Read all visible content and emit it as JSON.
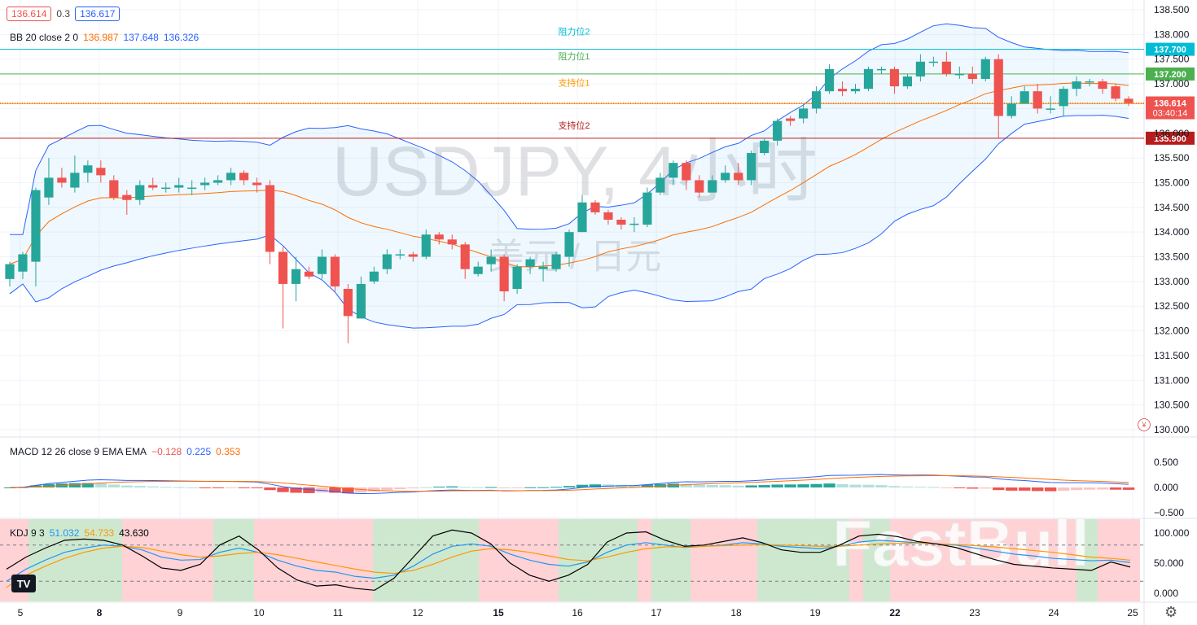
{
  "header": {
    "price_left": "136.614",
    "spread": "0.3",
    "price_right": "136.617"
  },
  "bb_legend": {
    "name": "BB 20 close 2 0",
    "basis": "136.987",
    "upper": "137.648",
    "lower": "136.326"
  },
  "macd_legend": {
    "name": "MACD 12 26 close 9 EMA EMA",
    "hist": "−0.128",
    "macd": "0.225",
    "signal": "0.353"
  },
  "kdj_legend": {
    "name": "KDJ 9 3",
    "k": "51.032",
    "d": "54.733",
    "j": "43.630"
  },
  "watermark": {
    "symbol": "USDJPY, 4小时",
    "desc": "美元 / 日元",
    "brand": "FastBull"
  },
  "colors": {
    "up": "#26a69a",
    "down": "#ef5350",
    "bb_band": "#2962ff",
    "bb_basis": "#ff6d00",
    "kdj_k": "#2196f3",
    "kdj_d": "#ff9800",
    "kdj_j": "#000000"
  },
  "chart_data": [
    {
      "type": "candlestick",
      "title": "USDJPY, 4小时",
      "subtitle": "美元 / 日元",
      "x_labels": [
        "5",
        "8",
        "9",
        "10",
        "11",
        "12",
        "15",
        "16",
        "17",
        "18",
        "19",
        "22",
        "23",
        "24",
        "25"
      ],
      "y_ticks": [
        "138.500",
        "138.000",
        "137.500",
        "137.000",
        "136.500",
        "136.000",
        "135.500",
        "135.000",
        "134.500",
        "134.000",
        "133.500",
        "133.000",
        "132.500",
        "132.000",
        "131.500",
        "131.000",
        "130.500",
        "130.000"
      ],
      "ylim": [
        129.95,
        138.65
      ],
      "candles": [
        [
          133.05,
          133.35,
          132.9,
          133.4
        ],
        [
          133.2,
          133.55,
          133.05,
          133.6
        ],
        [
          133.4,
          134.85,
          132.9,
          134.9
        ],
        [
          134.7,
          135.1,
          134.55,
          135.5
        ],
        [
          135.1,
          135.0,
          134.9,
          135.3
        ],
        [
          134.9,
          135.2,
          134.8,
          135.55
        ],
        [
          135.2,
          135.35,
          135.0,
          135.45
        ],
        [
          135.3,
          135.15,
          135.0,
          135.45
        ],
        [
          135.05,
          134.7,
          134.65,
          135.15
        ],
        [
          134.75,
          134.65,
          134.35,
          134.85
        ],
        [
          134.65,
          134.95,
          134.55,
          135.05
        ],
        [
          134.95,
          134.9,
          134.85,
          135.1
        ],
        [
          134.9,
          134.9,
          134.8,
          135.0
        ],
        [
          134.9,
          134.95,
          134.8,
          135.1
        ],
        [
          134.9,
          134.9,
          134.75,
          135.05
        ],
        [
          134.95,
          135.0,
          134.85,
          135.1
        ],
        [
          135.0,
          135.05,
          134.95,
          135.15
        ],
        [
          135.05,
          135.2,
          134.95,
          135.3
        ],
        [
          135.2,
          135.05,
          134.95,
          135.25
        ],
        [
          135.0,
          134.95,
          134.8,
          135.1
        ],
        [
          134.95,
          133.6,
          133.35,
          135.05
        ],
        [
          133.6,
          132.95,
          132.05,
          133.7
        ],
        [
          132.95,
          133.25,
          132.6,
          133.5
        ],
        [
          133.2,
          133.1,
          133.05,
          133.3
        ],
        [
          133.15,
          133.5,
          133.05,
          133.65
        ],
        [
          133.5,
          132.9,
          132.8,
          133.55
        ],
        [
          132.85,
          132.3,
          131.75,
          132.95
        ],
        [
          132.25,
          132.95,
          132.25,
          133.1
        ],
        [
          133.0,
          133.2,
          132.95,
          133.3
        ],
        [
          133.25,
          133.55,
          133.15,
          133.65
        ],
        [
          133.55,
          133.55,
          133.45,
          133.65
        ],
        [
          133.55,
          133.5,
          133.4,
          133.6
        ],
        [
          133.5,
          133.95,
          133.45,
          134.05
        ],
        [
          133.95,
          133.85,
          133.75,
          134.0
        ],
        [
          133.85,
          133.75,
          133.65,
          133.95
        ],
        [
          133.75,
          133.25,
          133.05,
          133.8
        ],
        [
          133.15,
          133.3,
          133.1,
          133.4
        ],
        [
          133.35,
          133.5,
          133.2,
          133.65
        ],
        [
          133.5,
          132.8,
          132.6,
          133.55
        ],
        [
          132.85,
          133.3,
          132.75,
          133.35
        ],
        [
          133.3,
          133.45,
          133.15,
          133.5
        ],
        [
          133.25,
          133.3,
          133.0,
          133.4
        ],
        [
          133.25,
          133.55,
          133.2,
          133.6
        ],
        [
          133.5,
          134.0,
          133.3,
          134.05
        ],
        [
          134.0,
          134.6,
          134.0,
          134.75
        ],
        [
          134.6,
          134.4,
          134.35,
          134.65
        ],
        [
          134.4,
          134.25,
          134.15,
          134.45
        ],
        [
          134.25,
          134.15,
          134.05,
          134.3
        ],
        [
          134.15,
          134.17,
          134.0,
          134.3
        ],
        [
          134.15,
          134.8,
          134.1,
          134.9
        ],
        [
          134.8,
          135.1,
          134.75,
          135.2
        ],
        [
          135.1,
          135.4,
          134.95,
          135.45
        ],
        [
          135.4,
          135.05,
          134.85,
          135.45
        ],
        [
          135.05,
          134.8,
          134.7,
          135.15
        ],
        [
          134.8,
          135.05,
          134.8,
          135.15
        ],
        [
          135.05,
          135.2,
          135.0,
          135.35
        ],
        [
          135.2,
          135.05,
          134.95,
          135.4
        ],
        [
          135.05,
          135.6,
          134.95,
          135.65
        ],
        [
          135.6,
          135.85,
          135.55,
          135.9
        ],
        [
          135.85,
          136.25,
          135.75,
          136.3
        ],
        [
          136.3,
          136.25,
          136.15,
          136.35
        ],
        [
          136.3,
          136.5,
          136.2,
          136.6
        ],
        [
          136.5,
          136.85,
          136.4,
          136.95
        ],
        [
          136.85,
          137.3,
          136.8,
          137.4
        ],
        [
          136.9,
          136.85,
          136.75,
          137.05
        ],
        [
          136.85,
          136.9,
          136.8,
          137.0
        ],
        [
          136.9,
          137.3,
          136.85,
          137.35
        ],
        [
          137.3,
          137.3,
          137.2,
          137.35
        ],
        [
          137.3,
          136.95,
          136.8,
          137.35
        ],
        [
          136.95,
          137.15,
          136.9,
          137.2
        ],
        [
          137.15,
          137.45,
          137.05,
          137.6
        ],
        [
          137.45,
          137.45,
          137.35,
          137.55
        ],
        [
          137.45,
          137.2,
          137.15,
          137.65
        ],
        [
          137.2,
          137.2,
          137.1,
          137.35
        ],
        [
          137.2,
          137.1,
          137.0,
          137.35
        ],
        [
          137.1,
          137.5,
          137.05,
          137.55
        ],
        [
          137.5,
          136.35,
          135.9,
          137.6
        ],
        [
          136.35,
          136.6,
          136.3,
          136.75
        ],
        [
          136.6,
          136.85,
          136.6,
          136.95
        ],
        [
          136.85,
          136.5,
          136.4,
          137.0
        ],
        [
          136.5,
          136.5,
          136.4,
          136.75
        ],
        [
          136.55,
          136.9,
          136.35,
          136.95
        ],
        [
          136.9,
          137.05,
          136.75,
          137.15
        ],
        [
          137.05,
          137.05,
          136.95,
          137.1
        ],
        [
          137.05,
          136.9,
          136.8,
          137.1
        ],
        [
          136.95,
          136.7,
          136.65,
          137.0
        ],
        [
          136.7,
          136.61,
          136.55,
          136.75
        ]
      ],
      "bb_basis_approx": [
        133.0,
        133.5,
        133.9,
        134.2,
        134.4,
        134.6,
        134.7,
        134.8,
        134.9,
        134.95,
        134.8,
        134.4,
        134.1,
        133.9,
        133.75,
        133.6,
        133.5,
        133.35,
        133.25,
        133.25,
        133.45,
        133.75,
        134.05,
        134.3,
        134.55,
        134.85,
        135.2,
        135.5,
        135.8,
        136.1,
        136.4,
        136.6,
        136.8,
        136.95,
        137.0,
        136.95,
        137.0
      ],
      "price_lines": [
        {
          "label": "阻力位2",
          "value": 137.7,
          "color": "#00bcd4",
          "tag": "137.700"
        },
        {
          "label": "阻力位1",
          "value": 137.2,
          "color": "#4caf50",
          "tag": "137.200"
        },
        {
          "label": "支持位1",
          "value": 136.6,
          "color": "#ff9800",
          "tag": "136.600"
        },
        {
          "label": "支持位2",
          "value": 135.9,
          "color": "#b71c1c",
          "tag": "135.900"
        }
      ],
      "last_price": {
        "value": 136.614,
        "tag": "136.614",
        "countdown": "03:40:14"
      }
    },
    {
      "type": "bar",
      "title": "MACD 12 26 close 9 EMA EMA",
      "y_ticks": [
        "0.500",
        "0.000",
        "−0.500"
      ],
      "ylim": [
        -0.55,
        0.65
      ]
    },
    {
      "type": "line",
      "title": "KDJ 9 3",
      "y_ticks": [
        "100.000",
        "50.000",
        "0.000"
      ],
      "ylim": [
        0,
        120
      ],
      "series": [
        {
          "name": "K",
          "values": [
            20,
            40,
            55,
            68,
            75,
            80,
            78,
            72,
            60,
            55,
            56,
            68,
            75,
            68,
            55,
            45,
            38,
            35,
            28,
            25,
            30,
            45,
            65,
            78,
            82,
            78,
            65,
            55,
            48,
            45,
            52,
            68,
            80,
            84,
            80,
            76,
            78,
            80,
            84,
            82,
            78,
            76,
            74,
            78,
            85,
            88,
            86,
            84,
            82,
            80,
            75,
            70,
            65,
            62,
            58,
            56,
            54,
            55,
            51
          ]
        },
        {
          "name": "D",
          "values": [
            10,
            30,
            45,
            58,
            68,
            75,
            78,
            76,
            70,
            64,
            60,
            62,
            66,
            68,
            64,
            58,
            52,
            46,
            40,
            35,
            33,
            38,
            48,
            60,
            70,
            74,
            72,
            68,
            62,
            56,
            54,
            60,
            68,
            74,
            77,
            77,
            78,
            79,
            80,
            81,
            80,
            79,
            78,
            78,
            80,
            82,
            83,
            83,
            82,
            81,
            79,
            77,
            74,
            71,
            68,
            64,
            60,
            58,
            55
          ]
        },
        {
          "name": "J",
          "values": [
            40,
            60,
            75,
            88,
            90,
            88,
            80,
            62,
            42,
            38,
            48,
            80,
            95,
            72,
            42,
            22,
            12,
            14,
            8,
            5,
            25,
            60,
            95,
            105,
            100,
            82,
            50,
            30,
            20,
            30,
            48,
            85,
            100,
            102,
            88,
            78,
            80,
            86,
            92,
            84,
            72,
            68,
            68,
            80,
            95,
            98,
            94,
            86,
            82,
            76,
            66,
            56,
            48,
            45,
            42,
            40,
            38,
            52,
            43.6
          ]
        }
      ]
    }
  ]
}
